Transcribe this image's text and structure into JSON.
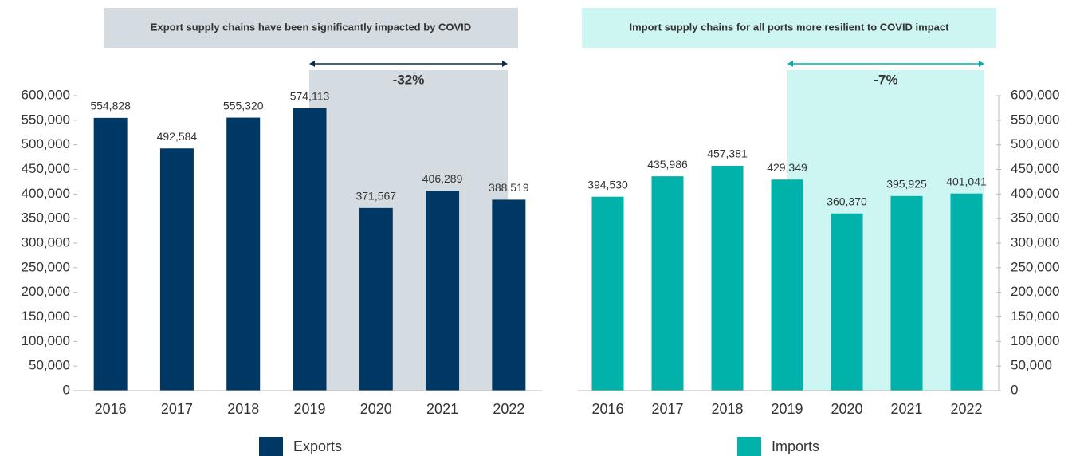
{
  "chart_data": [
    {
      "type": "bar",
      "banner": "Export supply chains have been significantly impacted by COVID",
      "change_label": "-32%",
      "categories": [
        "2016",
        "2017",
        "2018",
        "2019",
        "2020",
        "2021",
        "2022"
      ],
      "series": [
        {
          "name": "Exports",
          "color": "#003865",
          "values": [
            554828,
            492584,
            555320,
            574113,
            371567,
            406289,
            388519
          ],
          "value_labels": [
            "554,828",
            "492,584",
            "555,320",
            "574,113",
            "371,567",
            "406,289",
            "388,519"
          ]
        }
      ],
      "ylim": [
        0,
        600000
      ],
      "y_axis_side": "left",
      "highlight_color": "#d5dce1",
      "banner_text_color": "#0a2d4e",
      "yticks": [
        0,
        {
          "value": 50000,
          "label": "50,000"
        },
        {
          "value": 100000,
          "label": "100,000"
        },
        {
          "value": 150000,
          "label": "150,000"
        },
        {
          "value": 200000,
          "label": "200,000"
        },
        {
          "value": 250000,
          "label": "250,000"
        },
        {
          "value": 300000,
          "label": "300,000"
        },
        {
          "value": 350000,
          "label": "350,000"
        },
        {
          "value": 400000,
          "label": "400,000"
        },
        {
          "value": 450000,
          "label": "450,000"
        },
        {
          "value": 500000,
          "label": "500,000"
        },
        {
          "value": 550000,
          "label": "550,000"
        },
        {
          "value": 600000,
          "label": "600,000"
        }
      ]
    },
    {
      "type": "bar",
      "banner": "Import supply chains for all ports more resilient to COVID impact",
      "change_label": "-7%",
      "categories": [
        "2016",
        "2017",
        "2018",
        "2019",
        "2020",
        "2021",
        "2022"
      ],
      "series": [
        {
          "name": "Imports",
          "color": "#00b2a9",
          "values": [
            394530,
            435986,
            457381,
            429349,
            360370,
            395925,
            401041
          ],
          "value_labels": [
            "394,530",
            "435,986",
            "457,381",
            "429,349",
            "360,370",
            "395,925",
            "401,041"
          ]
        }
      ],
      "ylim": [
        0,
        600000
      ],
      "y_axis_side": "right",
      "highlight_color": "#cdf5f2",
      "banner_text_color": "#00b2a9",
      "yticks": [
        0,
        {
          "value": 50000,
          "label": "50,000"
        },
        {
          "value": 100000,
          "label": "100,000"
        },
        {
          "value": 150000,
          "label": "150,000"
        },
        {
          "value": 200000,
          "label": "200,000"
        },
        {
          "value": 250000,
          "label": "250,000"
        },
        {
          "value": 300000,
          "label": "300,000"
        },
        {
          "value": 350000,
          "label": "350,000"
        },
        {
          "value": 400000,
          "label": "400,000"
        },
        {
          "value": 450000,
          "label": "450,000"
        },
        {
          "value": 500000,
          "label": "500,000"
        },
        {
          "value": 550000,
          "label": "550,000"
        },
        {
          "value": 600000,
          "label": "600,000"
        }
      ]
    }
  ]
}
